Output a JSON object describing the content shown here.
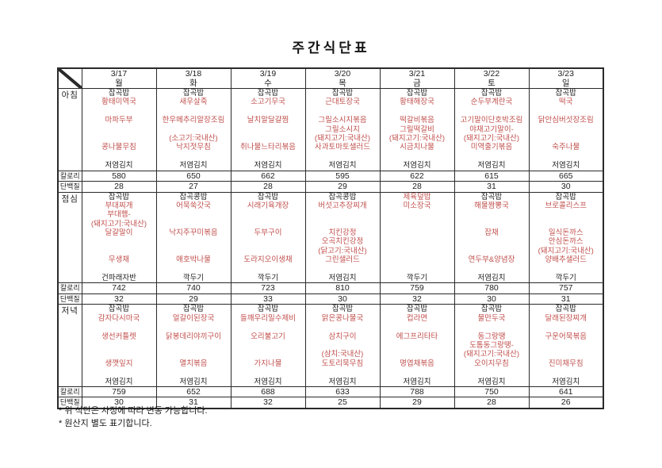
{
  "title": "주간식단표",
  "colors": {
    "accent_red": "#C0504D",
    "text_black": "#1F1F1F",
    "border": "#2A2A2A"
  },
  "row_labels": {
    "breakfast": "아침",
    "lunch": "점심",
    "dinner": "저녁",
    "calories": "칼로리",
    "protein": "단백질"
  },
  "days": [
    {
      "date": "3/17",
      "weekday": "월",
      "breakfast": {
        "lines": [
          [
            "잡곡밥",
            "k"
          ],
          [
            "황태미역국",
            "r"
          ],
          [
            "",
            ""
          ],
          [
            "마파두부",
            "r"
          ],
          [
            "",
            ""
          ],
          [
            "",
            ""
          ],
          [
            "콩나물무침",
            "r"
          ],
          [
            "",
            ""
          ],
          [
            "저염김치",
            "k"
          ]
        ],
        "calories": "580",
        "protein": "28"
      },
      "lunch": {
        "lines": [
          [
            "잡곡밥",
            "k"
          ],
          [
            "부대찌개",
            "r"
          ],
          [
            "부대햄-",
            "r"
          ],
          [
            "(돼지고기:국내산)",
            "r"
          ],
          [
            "달걀말이",
            "r"
          ],
          [
            "",
            ""
          ],
          [
            "",
            ""
          ],
          [
            "무생채",
            "r"
          ],
          [
            "",
            ""
          ],
          [
            "건파래자반",
            "k"
          ]
        ],
        "calories": "742",
        "protein": "32"
      },
      "dinner": {
        "lines": [
          [
            "잡곡밥",
            "k"
          ],
          [
            "감자다시마국",
            "r"
          ],
          [
            "",
            ""
          ],
          [
            "생선커틀렛",
            "r"
          ],
          [
            "",
            ""
          ],
          [
            "",
            ""
          ],
          [
            "생깻잎지",
            "r"
          ],
          [
            "",
            ""
          ],
          [
            "저염김치",
            "k"
          ]
        ],
        "calories": "759",
        "protein": "30"
      }
    },
    {
      "date": "3/18",
      "weekday": "화",
      "breakfast": {
        "lines": [
          [
            "잡곡밥",
            "k"
          ],
          [
            "새우살죽",
            "r"
          ],
          [
            "",
            ""
          ],
          [
            "한우메추리알장조림",
            "r"
          ],
          [
            "",
            ""
          ],
          [
            "(소고기:국내산)",
            "r"
          ],
          [
            "낙지젓무침",
            "r"
          ],
          [
            "",
            ""
          ],
          [
            "저염김치",
            "k"
          ]
        ],
        "calories": "650",
        "protein": "27"
      },
      "lunch": {
        "lines": [
          [
            "잡곡콩밥",
            "k"
          ],
          [
            "어묵쑥갓국",
            "r"
          ],
          [
            "",
            ""
          ],
          [
            "",
            ""
          ],
          [
            "낙지주꾸미볶음",
            "r"
          ],
          [
            "",
            ""
          ],
          [
            "",
            ""
          ],
          [
            "애호박나물",
            "r"
          ],
          [
            "",
            ""
          ],
          [
            "깍두기",
            "k"
          ]
        ],
        "calories": "740",
        "protein": "29"
      },
      "dinner": {
        "lines": [
          [
            "잡곡밥",
            "k"
          ],
          [
            "얼갈이된장국",
            "r"
          ],
          [
            "",
            ""
          ],
          [
            "닭봉데리야끼구이",
            "r"
          ],
          [
            "",
            ""
          ],
          [
            "",
            ""
          ],
          [
            "멸치볶음",
            "r"
          ],
          [
            "",
            ""
          ],
          [
            "저염김치",
            "k"
          ]
        ],
        "calories": "652",
        "protein": "31"
      }
    },
    {
      "date": "3/19",
      "weekday": "수",
      "breakfast": {
        "lines": [
          [
            "잡곡밥",
            "k"
          ],
          [
            "소고기무국",
            "r"
          ],
          [
            "",
            ""
          ],
          [
            "날치알달걀찜",
            "r"
          ],
          [
            "",
            ""
          ],
          [
            "",
            ""
          ],
          [
            "취나물느타리볶음",
            "r"
          ],
          [
            "",
            ""
          ],
          [
            "저염김치",
            "k"
          ]
        ],
        "calories": "662",
        "protein": "28"
      },
      "lunch": {
        "lines": [
          [
            "잡곡밥",
            "k"
          ],
          [
            "시래기육개장",
            "r"
          ],
          [
            "",
            ""
          ],
          [
            "",
            ""
          ],
          [
            "두부구이",
            "r"
          ],
          [
            "",
            ""
          ],
          [
            "",
            ""
          ],
          [
            "도라지오이생채",
            "r"
          ],
          [
            "",
            ""
          ],
          [
            "깍두기",
            "k"
          ]
        ],
        "calories": "723",
        "protein": "33"
      },
      "dinner": {
        "lines": [
          [
            "잡곡밥",
            "k"
          ],
          [
            "들깨우리밀수제비",
            "r"
          ],
          [
            "",
            ""
          ],
          [
            "오리불고기",
            "r"
          ],
          [
            "",
            ""
          ],
          [
            "",
            ""
          ],
          [
            "가지나물",
            "r"
          ],
          [
            "",
            ""
          ],
          [
            "저염김치",
            "k"
          ]
        ],
        "calories": "688",
        "protein": "32"
      }
    },
    {
      "date": "3/20",
      "weekday": "목",
      "breakfast": {
        "lines": [
          [
            "잡곡밥",
            "k"
          ],
          [
            "근대토장국",
            "r"
          ],
          [
            "",
            ""
          ],
          [
            "그릴소시지볶음",
            "r"
          ],
          [
            "그릴소시지",
            "r"
          ],
          [
            "(돼지고기:국내산)",
            "r"
          ],
          [
            "사과토마토샐러드",
            "r"
          ],
          [
            "",
            ""
          ],
          [
            "저염김치",
            "k"
          ]
        ],
        "calories": "595",
        "protein": "29"
      },
      "lunch": {
        "lines": [
          [
            "잡곡콩밥",
            "k"
          ],
          [
            "버섯고추장찌개",
            "r"
          ],
          [
            "",
            ""
          ],
          [
            "",
            ""
          ],
          [
            "치킨강정",
            "r"
          ],
          [
            "오곡치킨강정",
            "r"
          ],
          [
            "(닭고기:국내산)",
            "r"
          ],
          [
            "그린샐러드",
            "r"
          ],
          [
            "",
            ""
          ],
          [
            "저염김치",
            "k"
          ]
        ],
        "calories": "810",
        "protein": "30"
      },
      "dinner": {
        "lines": [
          [
            "잡곡밥",
            "k"
          ],
          [
            "맑은콩나물국",
            "r"
          ],
          [
            "",
            ""
          ],
          [
            "삼치구이",
            "r"
          ],
          [
            "",
            ""
          ],
          [
            "(삼치:국내산)",
            "r"
          ],
          [
            "도토리묵무침",
            "r"
          ],
          [
            "",
            ""
          ],
          [
            "저염김치",
            "k"
          ]
        ],
        "calories": "633",
        "protein": "25"
      }
    },
    {
      "date": "3/21",
      "weekday": "금",
      "breakfast": {
        "lines": [
          [
            "잡곡밥",
            "k"
          ],
          [
            "황태해장국",
            "r"
          ],
          [
            "",
            ""
          ],
          [
            "떡갈비볶음",
            "r"
          ],
          [
            "그릴떡갈비",
            "r"
          ],
          [
            "(돼지고기:국내산)",
            "r"
          ],
          [
            "시금치나물",
            "r"
          ],
          [
            "",
            ""
          ],
          [
            "저염김치",
            "k"
          ]
        ],
        "calories": "622",
        "protein": "28"
      },
      "lunch": {
        "lines": [
          [
            "제육덮밥",
            "r"
          ],
          [
            "미소장국",
            "r"
          ],
          [
            "",
            ""
          ],
          [
            "",
            ""
          ],
          [
            "",
            ""
          ],
          [
            "",
            ""
          ],
          [
            "",
            ""
          ],
          [
            "",
            ""
          ],
          [
            "",
            ""
          ],
          [
            "깍두기",
            "k"
          ]
        ],
        "calories": "759",
        "protein": "32"
      },
      "dinner": {
        "lines": [
          [
            "잡곡밥",
            "k"
          ],
          [
            "컵라면",
            "r"
          ],
          [
            "",
            ""
          ],
          [
            "에그프리타타",
            "r"
          ],
          [
            "",
            ""
          ],
          [
            "",
            ""
          ],
          [
            "명엽채볶음",
            "r"
          ],
          [
            "",
            ""
          ],
          [
            "저염김치",
            "k"
          ]
        ],
        "calories": "788",
        "protein": "29"
      }
    },
    {
      "date": "3/22",
      "weekday": "토",
      "breakfast": {
        "lines": [
          [
            "잡곡밥",
            "k"
          ],
          [
            "순두부계란국",
            "r"
          ],
          [
            "",
            ""
          ],
          [
            "고기말이단호박조림",
            "r"
          ],
          [
            "야채고기말이-",
            "r"
          ],
          [
            "(돼지고기:국내산)",
            "r"
          ],
          [
            "미역줄기볶음",
            "r"
          ],
          [
            "",
            ""
          ],
          [
            "저염김치",
            "k"
          ]
        ],
        "calories": "615",
        "protein": "31"
      },
      "lunch": {
        "lines": [
          [
            "잡곡밥",
            "k"
          ],
          [
            "해물짬뽕국",
            "r"
          ],
          [
            "",
            ""
          ],
          [
            "",
            ""
          ],
          [
            "잡채",
            "r"
          ],
          [
            "",
            ""
          ],
          [
            "",
            ""
          ],
          [
            "연두부&양념장",
            "r"
          ],
          [
            "",
            ""
          ],
          [
            "저염김치",
            "k"
          ]
        ],
        "calories": "780",
        "protein": "30"
      },
      "dinner": {
        "lines": [
          [
            "잡곡밥",
            "k"
          ],
          [
            "물만두국",
            "r"
          ],
          [
            "",
            ""
          ],
          [
            "동그랑땡",
            "r"
          ],
          [
            "도톰동그랑땡-",
            "r"
          ],
          [
            "(돼지고기:국내산)",
            "r"
          ],
          [
            "오이지무침",
            "r"
          ],
          [
            "",
            ""
          ],
          [
            "저염김치",
            "k"
          ]
        ],
        "calories": "750",
        "protein": "28"
      }
    },
    {
      "date": "3/23",
      "weekday": "일",
      "breakfast": {
        "lines": [
          [
            "잡곡밥",
            "k"
          ],
          [
            "떡국",
            "r"
          ],
          [
            "",
            ""
          ],
          [
            "닭안심버섯장조림",
            "r"
          ],
          [
            "",
            ""
          ],
          [
            "",
            ""
          ],
          [
            "숙주나물",
            "r"
          ],
          [
            "",
            ""
          ],
          [
            "저염김치",
            "k"
          ]
        ],
        "calories": "665",
        "protein": "30"
      },
      "lunch": {
        "lines": [
          [
            "잡곡밥",
            "k"
          ],
          [
            "브로콜리스프",
            "r"
          ],
          [
            "",
            ""
          ],
          [
            "",
            ""
          ],
          [
            "일식돈까스",
            "r"
          ],
          [
            "안심돈까스",
            "r"
          ],
          [
            "(돼지고기:국내산)",
            "r"
          ],
          [
            "양배추샐러드",
            "r"
          ],
          [
            "",
            ""
          ],
          [
            "깍두기",
            "k"
          ]
        ],
        "calories": "757",
        "protein": "31"
      },
      "dinner": {
        "lines": [
          [
            "잡곡밥",
            "k"
          ],
          [
            "달래된장찌개",
            "r"
          ],
          [
            "",
            ""
          ],
          [
            "구운어묵볶음",
            "r"
          ],
          [
            "",
            ""
          ],
          [
            "",
            ""
          ],
          [
            "진미채무침",
            "r"
          ],
          [
            "",
            ""
          ],
          [
            "저염김치",
            "k"
          ]
        ],
        "calories": "641",
        "protein": "26"
      }
    }
  ],
  "footnotes": [
    "* 위 식단은 사정에 따라 변동 가능합니다.",
    "* 원산지 별도 표기합니다."
  ]
}
